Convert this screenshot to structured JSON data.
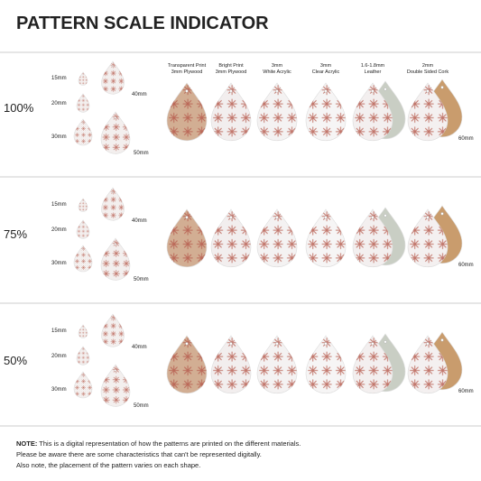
{
  "title": "PATTERN SCALE INDICATOR",
  "materials": [
    {
      "line1": "Transparent Print",
      "line2": "3mm Plywood"
    },
    {
      "line1": "Bright Print",
      "line2": "3mm Plywood"
    },
    {
      "line1": "3mm",
      "line2": "White Acrylic"
    },
    {
      "line1": "3mm",
      "line2": "Clear Acrylic"
    },
    {
      "line1": "1.6-1.8mm",
      "line2": "Leather"
    },
    {
      "line1": "2mm",
      "line2": "Double Sided Cork"
    }
  ],
  "rows": [
    {
      "scale": "100%",
      "sizes": [
        "15mm",
        "20mm",
        "30mm",
        "40mm",
        "50mm"
      ],
      "large": "60mm"
    },
    {
      "scale": "75%",
      "sizes": [
        "15mm",
        "20mm",
        "30mm",
        "40mm",
        "50mm"
      ],
      "large": "60mm"
    },
    {
      "scale": "50%",
      "sizes": [
        "15mm",
        "20mm",
        "30mm",
        "40mm",
        "50mm"
      ],
      "large": "60mm"
    }
  ],
  "note": {
    "label": "NOTE:",
    "lines": [
      "This is a digital representation of how the patterns are printed on the different materials.",
      "Please be aware there are some characteristics that can't be represented digitally.",
      "Also note, the placement of the pattern varies on each shape."
    ]
  }
}
